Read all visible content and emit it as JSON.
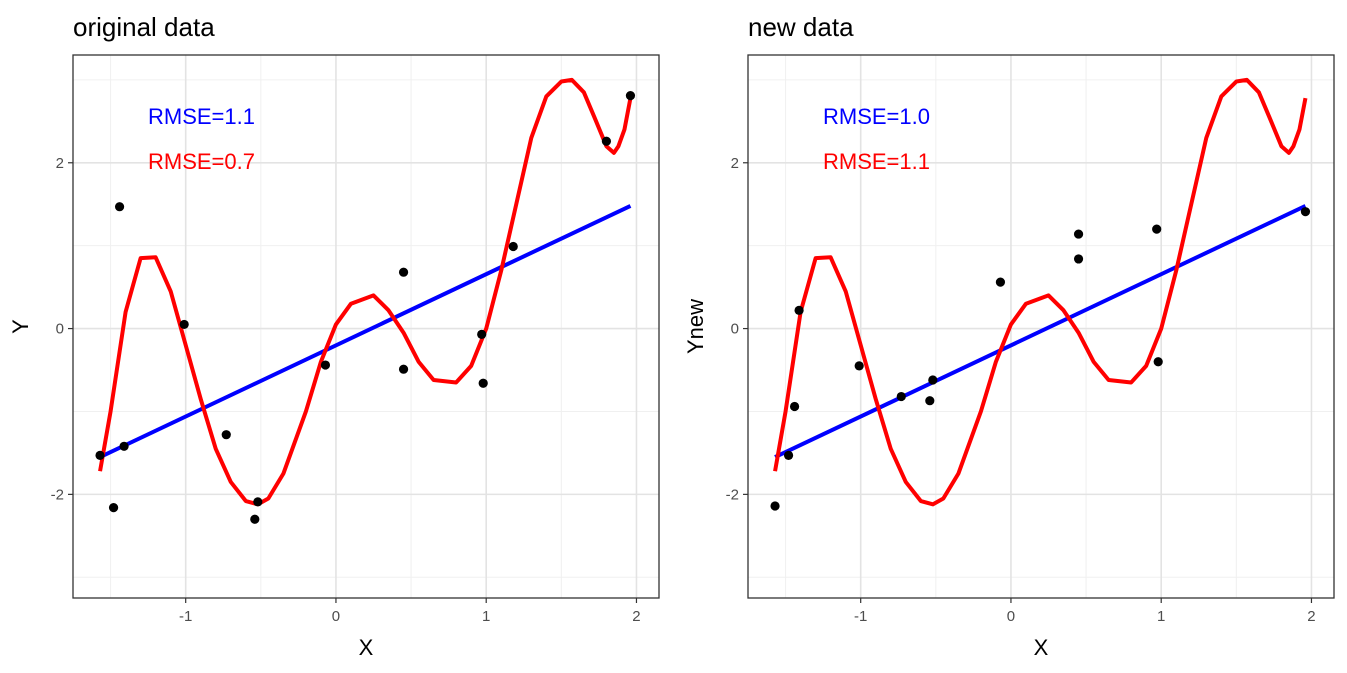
{
  "chart_data": [
    {
      "type": "scatter",
      "title": "original data",
      "xlabel": "X",
      "ylabel": "Y",
      "xlim": [
        -1.75,
        2.15
      ],
      "ylim": [
        -3.25,
        3.3
      ],
      "xticks": [
        -1,
        0,
        1,
        2
      ],
      "xtick_labels": [
        "-1",
        "0",
        "1",
        "2"
      ],
      "yticks": [
        -2,
        0,
        2
      ],
      "ytick_labels": [
        "-2",
        "0",
        "2"
      ],
      "grid": true,
      "annotations": [
        {
          "text": "RMSE=1.1",
          "color": "#0000ff"
        },
        {
          "text": "RMSE=0.7",
          "color": "#ff0000"
        }
      ],
      "points": {
        "color": "#000000",
        "x": [
          -1.57,
          -1.48,
          -1.44,
          -1.41,
          -1.01,
          -0.73,
          -0.54,
          -0.52,
          -0.07,
          0.45,
          0.45,
          0.97,
          0.98,
          1.18,
          1.8,
          1.96
        ],
        "y": [
          -1.53,
          -2.16,
          1.47,
          -1.42,
          0.05,
          -1.28,
          -2.3,
          -2.09,
          -0.44,
          0.68,
          -0.49,
          -0.07,
          -0.66,
          0.99,
          2.26,
          2.81
        ]
      },
      "series": [
        {
          "kind": "line",
          "color": "#0000ff",
          "x": [
            -1.57,
            1.96
          ],
          "y": [
            -1.55,
            1.48
          ]
        },
        {
          "kind": "curve",
          "color": "#ff0000",
          "x": [
            -1.57,
            -1.5,
            -1.4,
            -1.3,
            -1.2,
            -1.1,
            -1.0,
            -0.9,
            -0.8,
            -0.7,
            -0.6,
            -0.52,
            -0.45,
            -0.35,
            -0.2,
            -0.1,
            0.0,
            0.1,
            0.25,
            0.35,
            0.45,
            0.55,
            0.65,
            0.8,
            0.9,
            1.0,
            1.1,
            1.2,
            1.3,
            1.4,
            1.5,
            1.57,
            1.65,
            1.72,
            1.8,
            1.85,
            1.88,
            1.92,
            1.96
          ],
          "y": [
            -1.72,
            -1.0,
            0.2,
            0.85,
            0.86,
            0.45,
            -0.2,
            -0.85,
            -1.45,
            -1.85,
            -2.08,
            -2.12,
            -2.05,
            -1.75,
            -1.0,
            -0.4,
            0.05,
            0.3,
            0.4,
            0.22,
            -0.05,
            -0.4,
            -0.62,
            -0.65,
            -0.45,
            0.0,
            0.7,
            1.5,
            2.3,
            2.8,
            2.98,
            3.0,
            2.85,
            2.55,
            2.2,
            2.12,
            2.2,
            2.4,
            2.78
          ]
        }
      ]
    },
    {
      "type": "scatter",
      "title": "new data",
      "xlabel": "X",
      "ylabel": "Ynew",
      "xlim": [
        -1.75,
        2.15
      ],
      "ylim": [
        -3.25,
        3.3
      ],
      "xticks": [
        -1,
        0,
        1,
        2
      ],
      "xtick_labels": [
        "-1",
        "0",
        "1",
        "2"
      ],
      "yticks": [
        -2,
        0,
        2
      ],
      "ytick_labels": [
        "-2",
        "0",
        "2"
      ],
      "grid": true,
      "annotations": [
        {
          "text": "RMSE=1.0",
          "color": "#0000ff"
        },
        {
          "text": "RMSE=1.1",
          "color": "#ff0000"
        }
      ],
      "points": {
        "color": "#000000",
        "x": [
          -1.57,
          -1.48,
          -1.44,
          -1.41,
          -1.01,
          -0.73,
          -0.54,
          -0.52,
          -0.07,
          0.45,
          0.45,
          0.97,
          0.98,
          1.96
        ],
        "y": [
          -2.14,
          -1.53,
          -0.94,
          0.22,
          -0.45,
          -0.82,
          -0.87,
          -0.62,
          0.56,
          1.14,
          0.84,
          1.2,
          -0.4,
          1.41
        ]
      },
      "series": [
        {
          "kind": "line",
          "color": "#0000ff",
          "x": [
            -1.57,
            1.96
          ],
          "y": [
            -1.55,
            1.48
          ]
        },
        {
          "kind": "curve",
          "color": "#ff0000",
          "x": [
            -1.57,
            -1.5,
            -1.4,
            -1.3,
            -1.2,
            -1.1,
            -1.0,
            -0.9,
            -0.8,
            -0.7,
            -0.6,
            -0.52,
            -0.45,
            -0.35,
            -0.2,
            -0.1,
            0.0,
            0.1,
            0.25,
            0.35,
            0.45,
            0.55,
            0.65,
            0.8,
            0.9,
            1.0,
            1.1,
            1.2,
            1.3,
            1.4,
            1.5,
            1.57,
            1.65,
            1.72,
            1.8,
            1.85,
            1.88,
            1.92,
            1.96
          ],
          "y": [
            -1.72,
            -1.0,
            0.2,
            0.85,
            0.86,
            0.45,
            -0.2,
            -0.85,
            -1.45,
            -1.85,
            -2.08,
            -2.12,
            -2.05,
            -1.75,
            -1.0,
            -0.4,
            0.05,
            0.3,
            0.4,
            0.22,
            -0.05,
            -0.4,
            -0.62,
            -0.65,
            -0.45,
            0.0,
            0.7,
            1.5,
            2.3,
            2.8,
            2.98,
            3.0,
            2.85,
            2.55,
            2.2,
            2.12,
            2.2,
            2.4,
            2.78
          ]
        }
      ]
    }
  ]
}
